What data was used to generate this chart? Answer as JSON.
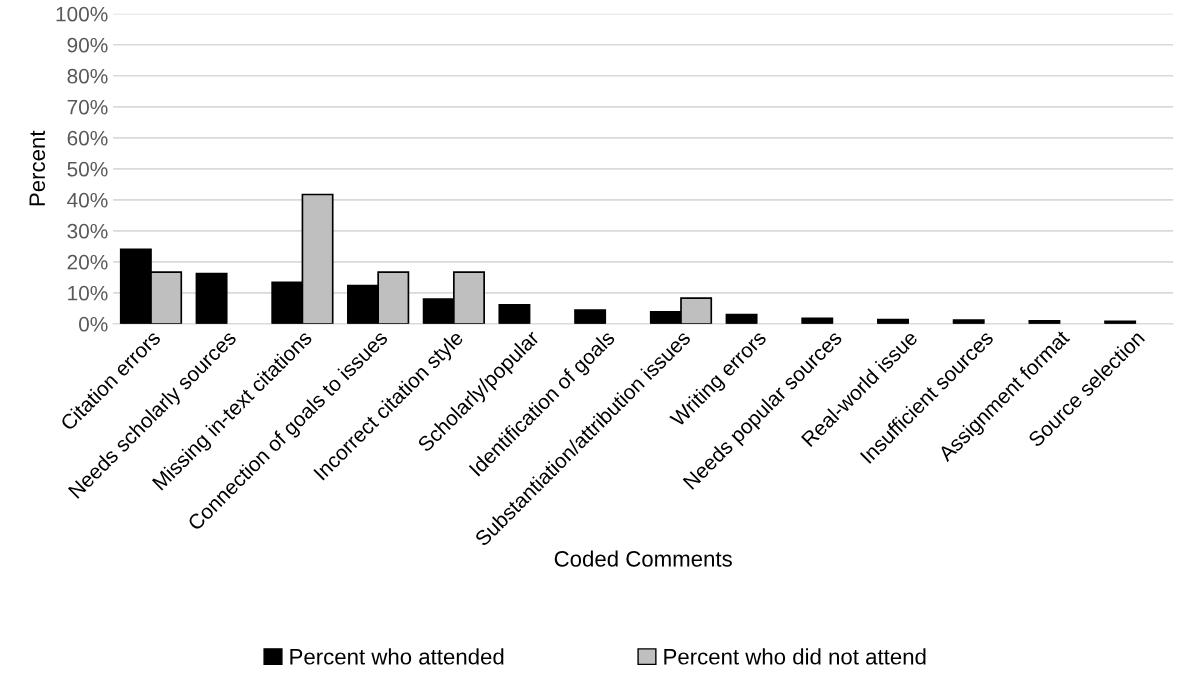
{
  "chart_data": {
    "type": "bar",
    "xlabel": "Coded Comments",
    "ylabel": "Percent",
    "categories": [
      "Citation errors",
      "Needs scholarly sources",
      "Missing in-text citations",
      "Connection of goals to issues",
      "Incorrect citation style",
      "Scholarly/popular",
      "Identification of goals",
      "Substantiation/attribution issues",
      "Writing errors",
      "Needs popular sources",
      "Real-world issue",
      "Insufficient sources",
      "Assignment format",
      "Source selection"
    ],
    "series": [
      {
        "name": "Percent who attended",
        "color": "#000000",
        "values": [
          24.0,
          16.2,
          13.4,
          12.3,
          8.0,
          6.1,
          4.4,
          3.9,
          3.0,
          1.8,
          1.4,
          1.2,
          1.0,
          0.8
        ]
      },
      {
        "name": "Percent who did not attend",
        "color": "#bfbfbf",
        "values": [
          16.7,
          null,
          41.7,
          16.7,
          16.7,
          null,
          null,
          8.3,
          null,
          null,
          null,
          null,
          null,
          null
        ]
      }
    ],
    "ylim": [
      0,
      100
    ],
    "yticks": [
      {
        "value": 0,
        "label": "0%"
      },
      {
        "value": 10,
        "label": "10%"
      },
      {
        "value": 20,
        "label": "20%"
      },
      {
        "value": 30,
        "label": "30%"
      },
      {
        "value": 40,
        "label": "40%"
      },
      {
        "value": 50,
        "label": "50%"
      },
      {
        "value": 60,
        "label": "60%"
      },
      {
        "value": 70,
        "label": "70%"
      },
      {
        "value": 80,
        "label": "80%"
      },
      {
        "value": 90,
        "label": "90%"
      },
      {
        "value": 100,
        "label": "100%"
      }
    ],
    "grid": "y",
    "legend": "bottom"
  }
}
